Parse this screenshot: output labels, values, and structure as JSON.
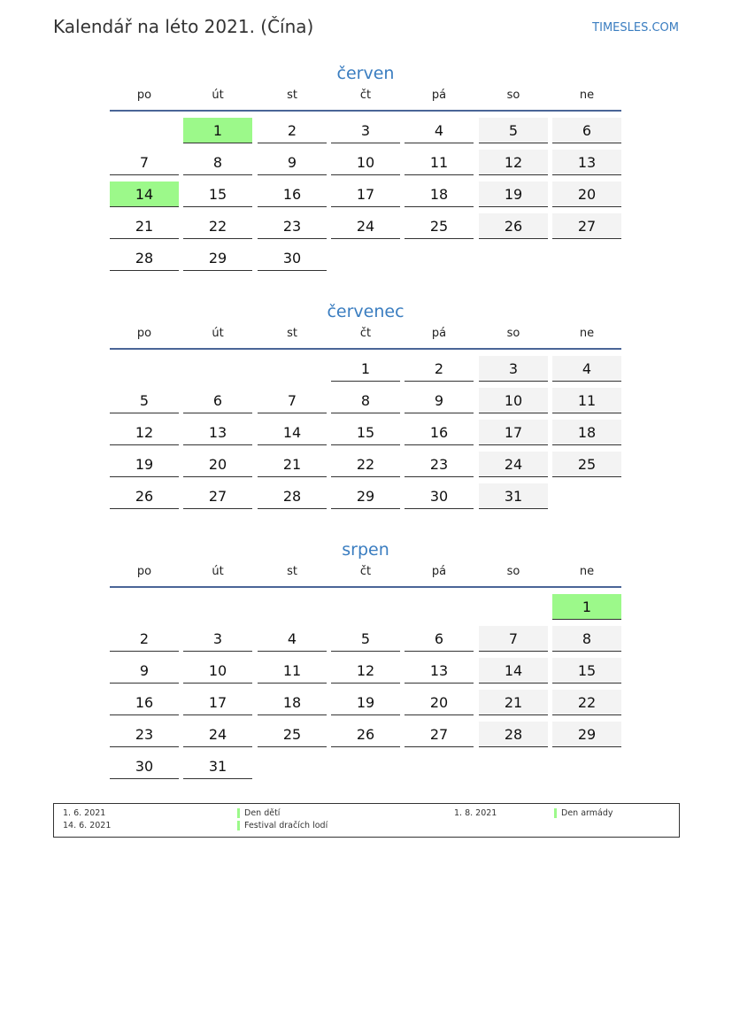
{
  "header": {
    "title": "Kalendář na léto 2021. (Čína)",
    "site": "TIMESLES.COM"
  },
  "weekdays": [
    "po",
    "út",
    "st",
    "čt",
    "pá",
    "so",
    "ne"
  ],
  "colors": {
    "accent": "#3a7dc0",
    "holiday": "#9cf98a",
    "weekend": "#f3f3f3",
    "rule": "#4a6597"
  },
  "months": [
    {
      "name": "červen",
      "weeks": [
        [
          null,
          1,
          2,
          3,
          4,
          5,
          6
        ],
        [
          7,
          8,
          9,
          10,
          11,
          12,
          13
        ],
        [
          14,
          15,
          16,
          17,
          18,
          19,
          20
        ],
        [
          21,
          22,
          23,
          24,
          25,
          26,
          27
        ],
        [
          28,
          29,
          30,
          null,
          null,
          null,
          null
        ]
      ],
      "holidays": [
        1,
        14
      ]
    },
    {
      "name": "červenec",
      "weeks": [
        [
          null,
          null,
          null,
          1,
          2,
          3,
          4
        ],
        [
          5,
          6,
          7,
          8,
          9,
          10,
          11
        ],
        [
          12,
          13,
          14,
          15,
          16,
          17,
          18
        ],
        [
          19,
          20,
          21,
          22,
          23,
          24,
          25
        ],
        [
          26,
          27,
          28,
          29,
          30,
          31,
          null
        ]
      ],
      "holidays": []
    },
    {
      "name": "srpen",
      "weeks": [
        [
          null,
          null,
          null,
          null,
          null,
          null,
          1
        ],
        [
          2,
          3,
          4,
          5,
          6,
          7,
          8
        ],
        [
          9,
          10,
          11,
          12,
          13,
          14,
          15
        ],
        [
          16,
          17,
          18,
          19,
          20,
          21,
          22
        ],
        [
          23,
          24,
          25,
          26,
          27,
          28,
          29
        ],
        [
          30,
          31,
          null,
          null,
          null,
          null,
          null
        ]
      ],
      "holidays": [
        1
      ]
    }
  ],
  "legend": [
    {
      "date": "1. 6. 2021",
      "name": "Den dětí"
    },
    {
      "date": "14. 6. 2021",
      "name": "Festival dračích lodí"
    },
    {
      "date": "1. 8. 2021",
      "name": "Den armády"
    }
  ]
}
